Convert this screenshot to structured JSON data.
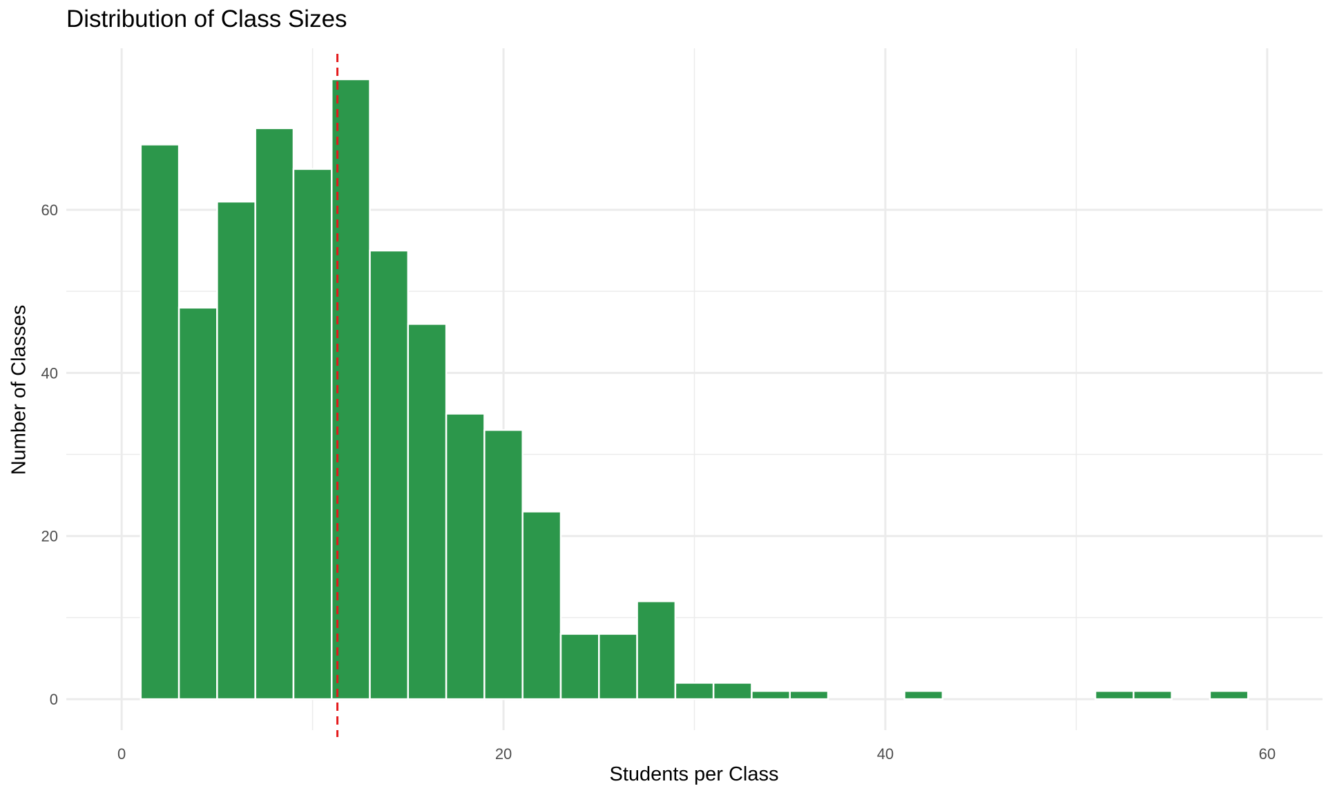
{
  "chart_data": {
    "type": "bar",
    "title": "Distribution of Class Sizes",
    "xlabel": "Students per Class",
    "ylabel": "Number of Classes",
    "bin_width": 2,
    "bins": [
      {
        "x0": 1,
        "x1": 3,
        "count": 68
      },
      {
        "x0": 3,
        "x1": 5,
        "count": 48
      },
      {
        "x0": 5,
        "x1": 7,
        "count": 61
      },
      {
        "x0": 7,
        "x1": 9,
        "count": 70
      },
      {
        "x0": 9,
        "x1": 11,
        "count": 65
      },
      {
        "x0": 11,
        "x1": 13,
        "count": 76
      },
      {
        "x0": 13,
        "x1": 15,
        "count": 55
      },
      {
        "x0": 15,
        "x1": 17,
        "count": 46
      },
      {
        "x0": 17,
        "x1": 19,
        "count": 35
      },
      {
        "x0": 19,
        "x1": 21,
        "count": 33
      },
      {
        "x0": 21,
        "x1": 23,
        "count": 23
      },
      {
        "x0": 23,
        "x1": 25,
        "count": 8
      },
      {
        "x0": 25,
        "x1": 27,
        "count": 8
      },
      {
        "x0": 27,
        "x1": 29,
        "count": 12
      },
      {
        "x0": 29,
        "x1": 31,
        "count": 2
      },
      {
        "x0": 31,
        "x1": 33,
        "count": 2
      },
      {
        "x0": 33,
        "x1": 35,
        "count": 1
      },
      {
        "x0": 35,
        "x1": 37,
        "count": 1
      },
      {
        "x0": 41,
        "x1": 43,
        "count": 1
      },
      {
        "x0": 51,
        "x1": 53,
        "count": 1
      },
      {
        "x0": 53,
        "x1": 55,
        "count": 1
      },
      {
        "x0": 57,
        "x1": 59,
        "count": 1
      }
    ],
    "reference_line": {
      "x": 11.3,
      "color": "#e41a1c",
      "style": "dashed"
    },
    "xlim": [
      -2.9,
      62.9
    ],
    "ylim": [
      -3.8,
      79.8
    ],
    "x_ticks": [
      0,
      20,
      40,
      60
    ],
    "y_ticks": [
      0,
      20,
      40,
      60
    ],
    "bar_color": "#2c974b",
    "grid": true,
    "legend": "none"
  }
}
